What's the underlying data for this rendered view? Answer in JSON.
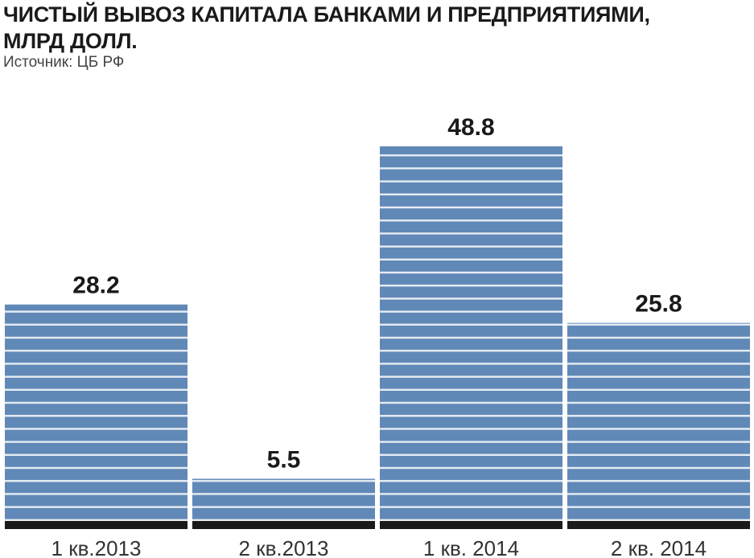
{
  "chart_data": {
    "type": "bar",
    "title_lines": [
      "ЧИСТЫЙ ВЫВОЗ КАПИТАЛА БАНКАМИ И ПРЕДПРИЯТИЯМИ,",
      "МЛРД ДОЛЛ."
    ],
    "subtitle": "Источник: ЦБ РФ",
    "categories": [
      "1 кв.2013",
      "2 кв.2013",
      "1 кв. 2014",
      "2 кв. 2014"
    ],
    "values": [
      28.2,
      5.5,
      48.8,
      25.8
    ],
    "value_labels": [
      "28.2",
      "5.5",
      "48.8",
      "25.8"
    ],
    "ylim": [
      0,
      48.8
    ],
    "grid": false,
    "legend": "none",
    "colors": {
      "bar": "#6189b7",
      "stripe": "#ffffff",
      "baseline": "#1a1a1a"
    }
  }
}
